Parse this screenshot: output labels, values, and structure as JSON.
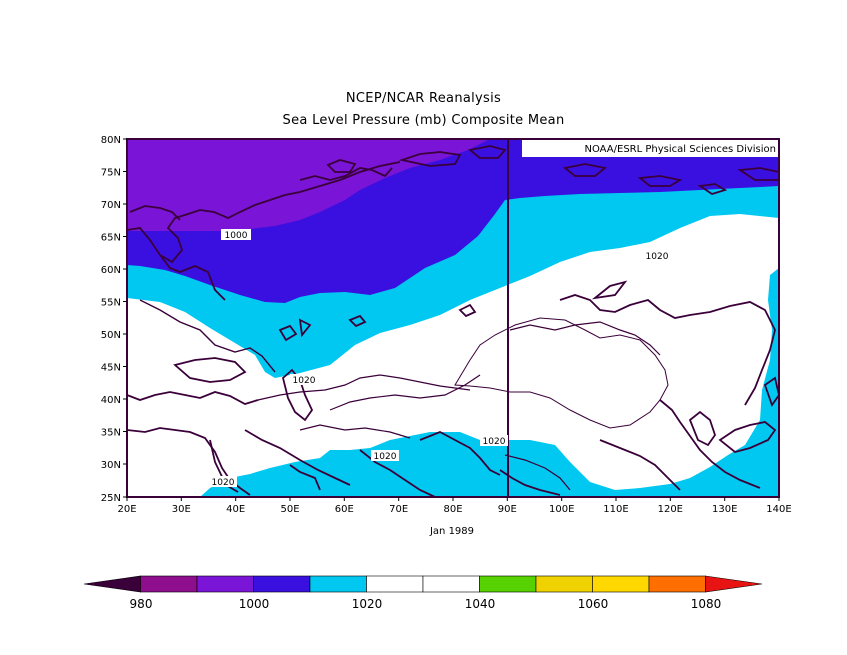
{
  "title": "NCEP/NCAR Reanalysis",
  "subtitle": "Sea Level Pressure (mb) Composite Mean",
  "credit": "NOAA/ESRL Physical Sciences Division",
  "period_label": "Jan 1989",
  "lat_ticks": [
    "80N",
    "75N",
    "70N",
    "65N",
    "60N",
    "55N",
    "50N",
    "45N",
    "40N",
    "35N",
    "30N",
    "25N"
  ],
  "lon_ticks": [
    "20E",
    "30E",
    "40E",
    "50E",
    "60E",
    "70E",
    "80E",
    "90E",
    "100E",
    "110E",
    "120E",
    "130E",
    "140E"
  ],
  "contour_labels": [
    "1000",
    "1020",
    "1020",
    "1020",
    "1020",
    "1020"
  ],
  "colorbar": {
    "labels": [
      "980",
      "1000",
      "1020",
      "1040",
      "1060",
      "1080"
    ],
    "colors": [
      "#3a003a",
      "#8e0e8e",
      "#7a14d6",
      "#3a10e0",
      "#00c8f0",
      "#ffffff",
      "#ffffff",
      "#55d200",
      "#f0d200",
      "#ffd800",
      "#ff6e00",
      "#e81414"
    ]
  },
  "colors": {
    "level_990_1000": "#7a14d6",
    "level_1000_1010": "#3a10e0",
    "level_1010_1020": "#00c8f0",
    "level_1020_1040": "#ffffff",
    "frame": "#3a003a",
    "coast": "#3a003a"
  }
}
